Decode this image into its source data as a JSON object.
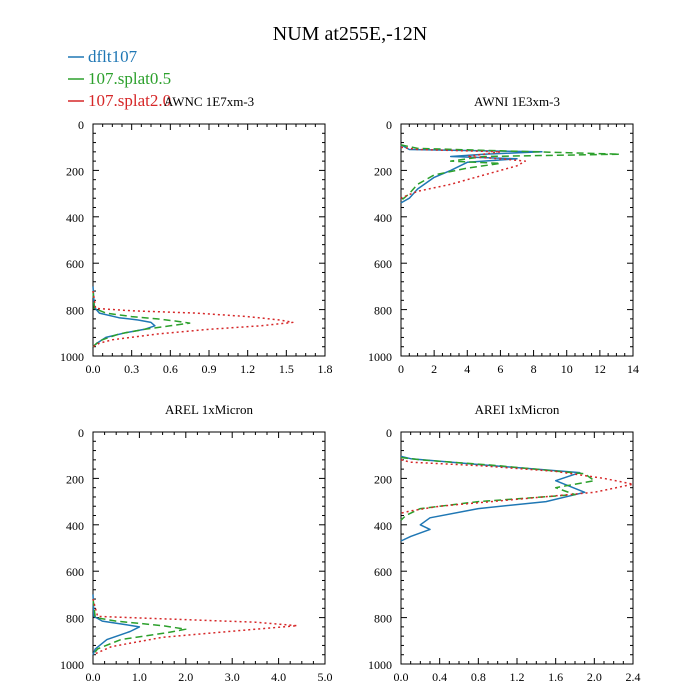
{
  "title": "NUM at255E,-12N",
  "legend": [
    {
      "label": "dflt107",
      "color": "#1f77b4",
      "dash": "solid"
    },
    {
      "label": "107.splat0.5",
      "color": "#2ca02c",
      "dash": "dashed"
    },
    {
      "label": "107.splat2.0",
      "color": "#d62728",
      "dash": "dotted"
    }
  ],
  "chart_data": [
    {
      "type": "line",
      "title": "AWNC  1E7xm-3",
      "xlim": [
        0,
        1.8
      ],
      "ylim": [
        1000,
        0
      ],
      "xticks": [
        0,
        0.3,
        0.6,
        0.9,
        1.2,
        1.5,
        1.8
      ],
      "xticklabels": [
        "0.0",
        "0.3",
        "0.6",
        "0.9",
        "1.2",
        "1.5",
        "1.8"
      ],
      "yticks": [
        0,
        200,
        400,
        600,
        800,
        1000
      ],
      "yticklabels": [
        "0",
        "200",
        "400",
        "600",
        "800",
        "1000"
      ],
      "series": [
        {
          "name": "dflt107",
          "x": [
            0,
            0.01,
            0.05,
            0.2,
            0.35,
            0.45,
            0.48,
            0.4,
            0.25,
            0.1,
            0.03,
            0
          ],
          "y": [
            700,
            790,
            815,
            835,
            845,
            855,
            870,
            885,
            900,
            920,
            945,
            960
          ]
        },
        {
          "name": "107.splat0.5",
          "x": [
            0,
            0.01,
            0.1,
            0.3,
            0.5,
            0.65,
            0.75,
            0.6,
            0.4,
            0.2,
            0.05,
            0
          ],
          "y": [
            720,
            795,
            815,
            830,
            840,
            850,
            858,
            870,
            885,
            905,
            935,
            960
          ]
        },
        {
          "name": "107.splat2.0",
          "x": [
            0,
            0.02,
            0.3,
            0.8,
            1.2,
            1.45,
            1.55,
            1.3,
            0.9,
            0.5,
            0.15,
            0.05,
            0
          ],
          "y": [
            720,
            795,
            805,
            815,
            830,
            845,
            855,
            870,
            885,
            905,
            930,
            945,
            960
          ]
        }
      ]
    },
    {
      "type": "line",
      "title": "AWNI  1E3xm-3",
      "xlim": [
        0,
        14
      ],
      "ylim": [
        1000,
        0
      ],
      "xticks": [
        0,
        2,
        4,
        6,
        8,
        10,
        12,
        14
      ],
      "xticklabels": [
        "0",
        "2",
        "4",
        "6",
        "8",
        "10",
        "12",
        "14"
      ],
      "yticks": [
        0,
        200,
        400,
        600,
        800,
        1000
      ],
      "yticklabels": [
        "0",
        "200",
        "400",
        "600",
        "800",
        "1000"
      ],
      "series": [
        {
          "name": "dflt107",
          "x": [
            0,
            0.5,
            8.5,
            5,
            3,
            7,
            4,
            3,
            2,
            1,
            0.5,
            0
          ],
          "y": [
            90,
            110,
            120,
            130,
            140,
            150,
            165,
            200,
            230,
            280,
            320,
            340
          ]
        },
        {
          "name": "107.splat0.5",
          "x": [
            0,
            1,
            13.2,
            5,
            3,
            6,
            4,
            2,
            1,
            0.5,
            0
          ],
          "y": [
            90,
            105,
            130,
            140,
            160,
            170,
            190,
            220,
            260,
            300,
            330
          ]
        },
        {
          "name": "107.splat2.0",
          "x": [
            0,
            1,
            6,
            4,
            6,
            7.5,
            7,
            5,
            3,
            1,
            0.3,
            0
          ],
          "y": [
            100,
            110,
            120,
            140,
            150,
            160,
            180,
            220,
            260,
            290,
            310,
            320
          ]
        }
      ]
    },
    {
      "type": "line",
      "title": "AREL  1xMicron",
      "xlim": [
        0,
        5.0
      ],
      "ylim": [
        1000,
        0
      ],
      "xticks": [
        0,
        1,
        2,
        3,
        4,
        5
      ],
      "xticklabels": [
        "0.0",
        "1.0",
        "2.0",
        "3.0",
        "4.0",
        "5.0"
      ],
      "yticks": [
        0,
        200,
        400,
        600,
        800,
        1000
      ],
      "yticklabels": [
        "0",
        "200",
        "400",
        "600",
        "800",
        "1000"
      ],
      "series": [
        {
          "name": "dflt107",
          "x": [
            0,
            0.02,
            0.2,
            0.7,
            1.0,
            0.8,
            0.3,
            0.05,
            0
          ],
          "y": [
            700,
            795,
            815,
            830,
            840,
            860,
            895,
            935,
            960
          ]
        },
        {
          "name": "107.splat0.5",
          "x": [
            0,
            0.05,
            0.5,
            1.5,
            2.0,
            1.6,
            0.6,
            0.1,
            0
          ],
          "y": [
            720,
            800,
            815,
            835,
            850,
            865,
            895,
            935,
            960
          ]
        },
        {
          "name": "107.splat2.0",
          "x": [
            0,
            0.1,
            1.5,
            3.5,
            4.4,
            3.2,
            1.5,
            0.4,
            0
          ],
          "y": [
            720,
            795,
            805,
            820,
            835,
            855,
            885,
            925,
            960
          ]
        }
      ]
    },
    {
      "type": "line",
      "title": "AREI  1xMicron",
      "xlim": [
        0,
        2.4
      ],
      "ylim": [
        1000,
        0
      ],
      "xticks": [
        0,
        0.4,
        0.8,
        1.2,
        1.6,
        2.0,
        2.4
      ],
      "xticklabels": [
        "0.0",
        "0.4",
        "0.8",
        "1.2",
        "1.6",
        "2.0",
        "2.4"
      ],
      "yticks": [
        0,
        200,
        400,
        600,
        800,
        1000
      ],
      "yticklabels": [
        "0",
        "200",
        "400",
        "600",
        "800",
        "1000"
      ],
      "series": [
        {
          "name": "dflt107",
          "x": [
            0,
            0.1,
            0.8,
            1.85,
            1.6,
            1.9,
            1.5,
            0.8,
            0.3,
            0.2,
            0.3,
            0.1,
            0
          ],
          "y": [
            105,
            115,
            140,
            175,
            210,
            260,
            300,
            330,
            370,
            400,
            420,
            450,
            470
          ]
        },
        {
          "name": "107.splat0.5",
          "x": [
            0,
            0.2,
            1.0,
            1.9,
            2.0,
            1.6,
            1.8,
            0.8,
            0.2,
            0.05,
            0
          ],
          "y": [
            110,
            120,
            145,
            180,
            210,
            240,
            270,
            300,
            330,
            360,
            380
          ]
        },
        {
          "name": "107.splat2.0",
          "x": [
            0,
            0.1,
            0.8,
            1.6,
            2.1,
            2.4,
            2.0,
            1.2,
            0.4,
            0.1,
            0
          ],
          "y": [
            120,
            130,
            145,
            170,
            200,
            225,
            260,
            290,
            320,
            340,
            350
          ]
        }
      ]
    }
  ]
}
